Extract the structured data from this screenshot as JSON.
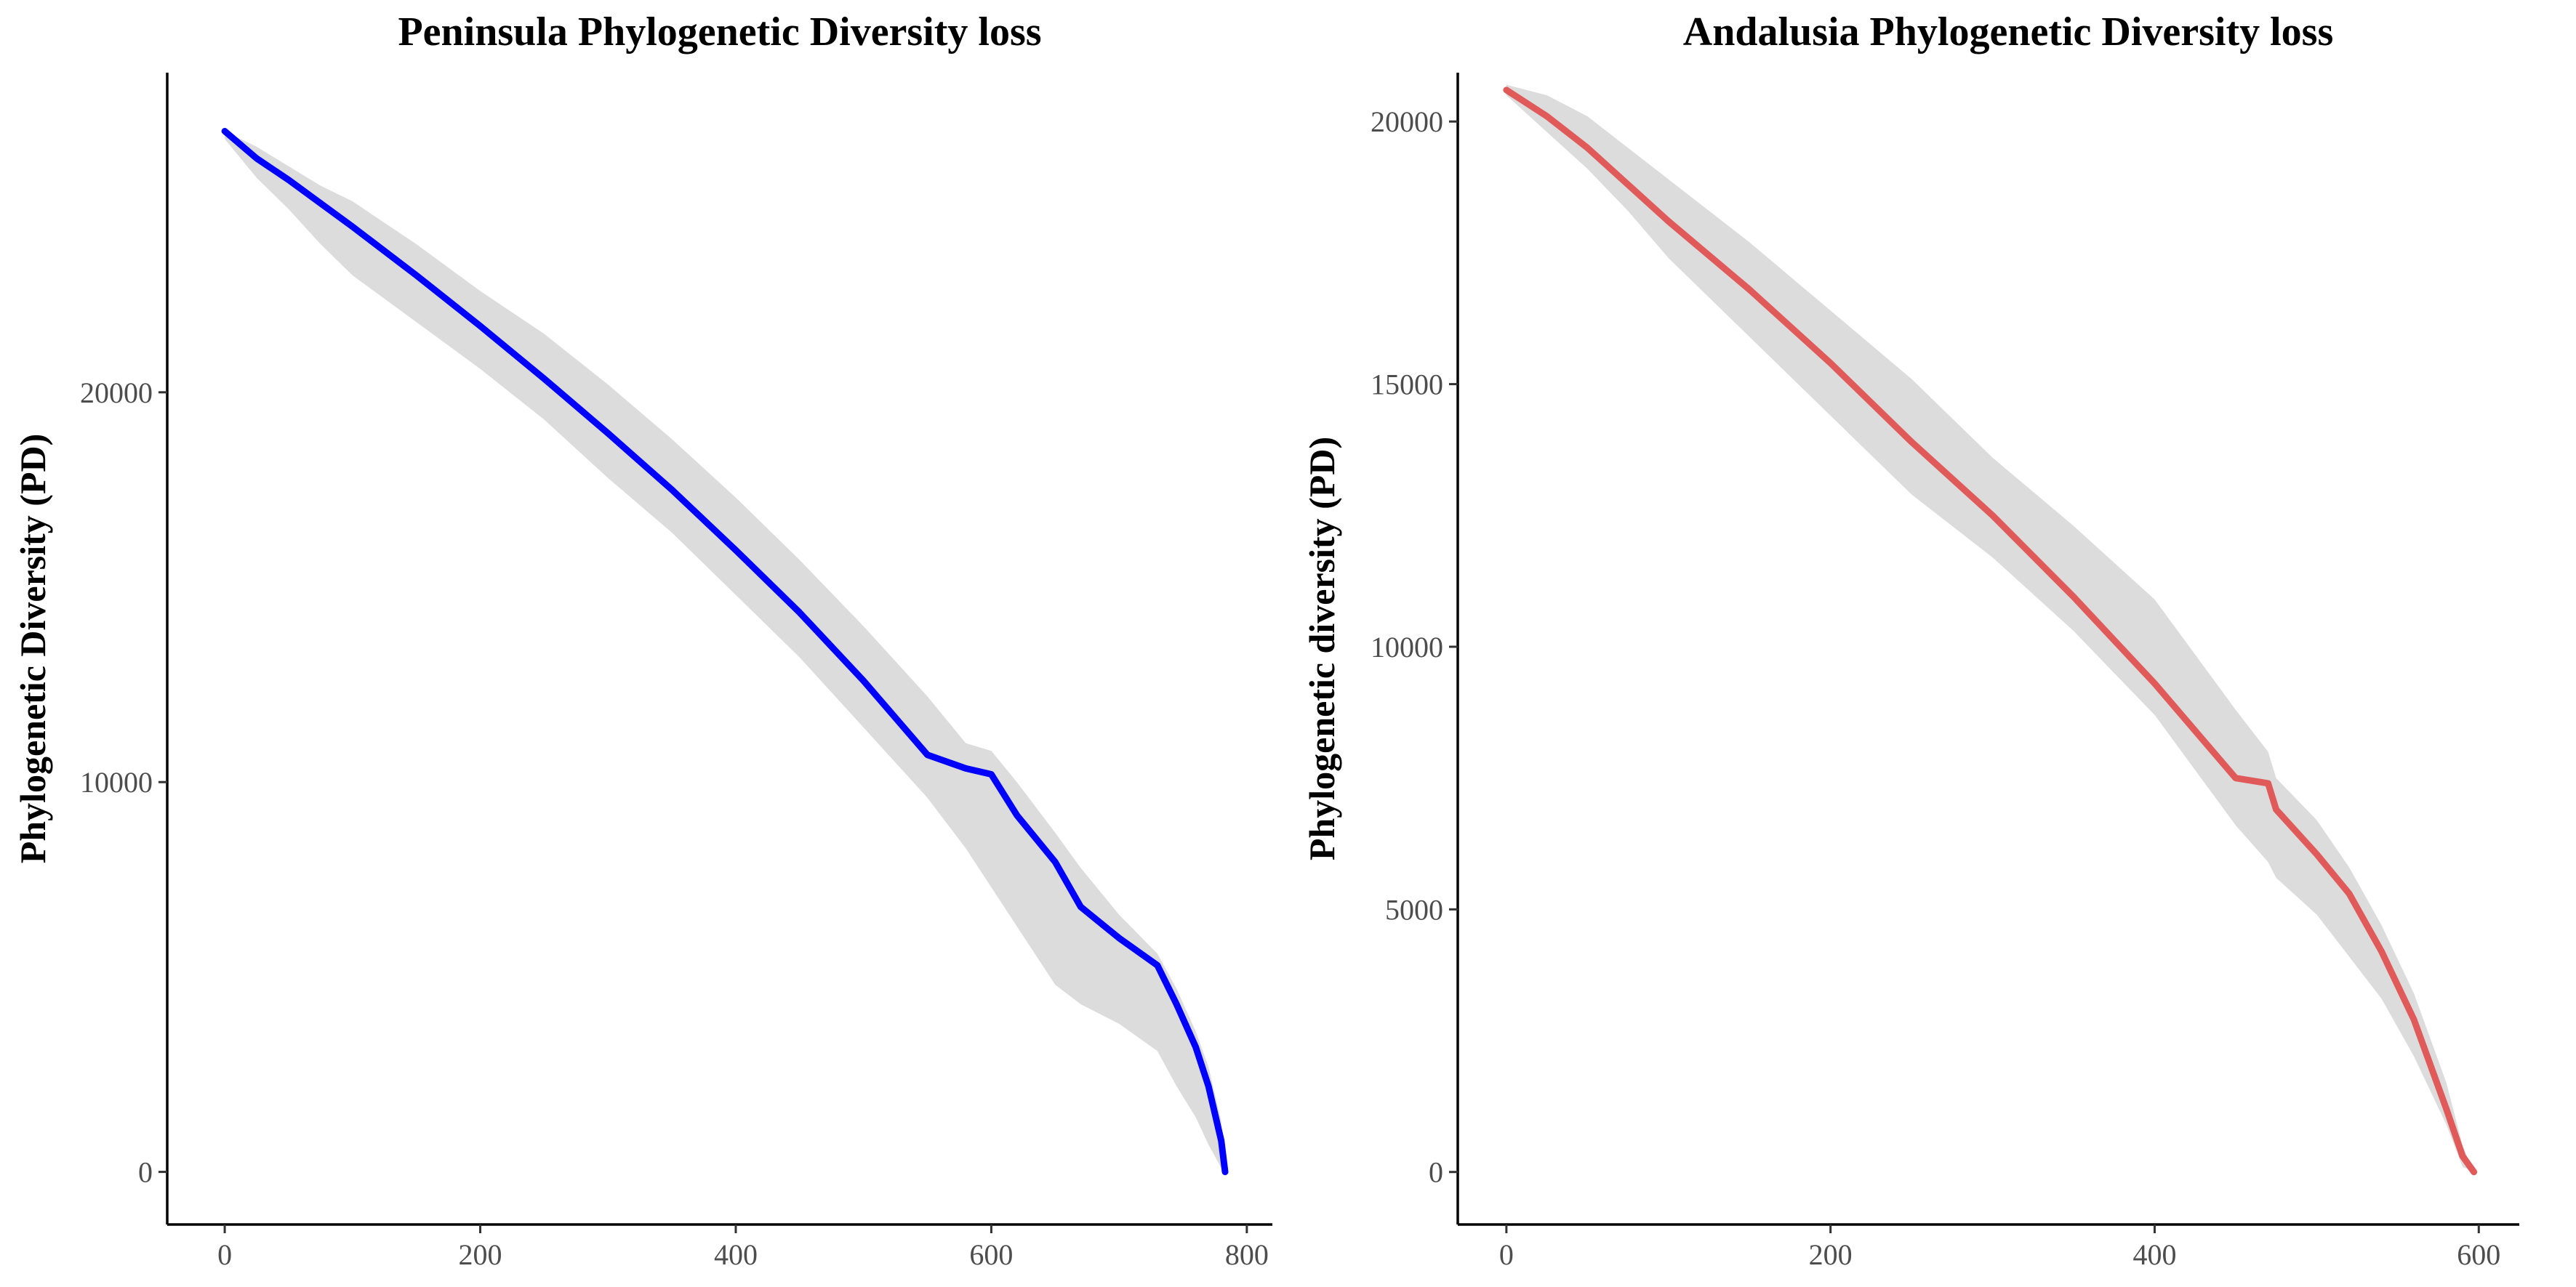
{
  "chart_data": [
    {
      "type": "line",
      "title": "Peninsula Phylogenetic Diversity loss",
      "xlabel": "",
      "ylabel": "Phylogenetic Diversity (PD)",
      "xlim": [
        -45,
        820
      ],
      "ylim": [
        -1350,
        28200
      ],
      "xticks": [
        0,
        200,
        400,
        600,
        800
      ],
      "yticks": [
        0,
        10000,
        20000
      ],
      "grid": false,
      "legend": "none",
      "line_color": "#0000ff",
      "band_color": "#dcdcdc",
      "series": [
        {
          "values_x": [
            0,
            25,
            50,
            75,
            100,
            150,
            200,
            250,
            300,
            350,
            400,
            450,
            500,
            550,
            580,
            600,
            620,
            650,
            670,
            700,
            730,
            745,
            760,
            770,
            780,
            783
          ],
          "values_y": [
            26700,
            26000,
            25450,
            24850,
            24250,
            23000,
            21700,
            20350,
            18950,
            17500,
            15950,
            14350,
            12600,
            10700,
            10350,
            10200,
            9150,
            7950,
            6800,
            6000,
            5300,
            4300,
            3200,
            2200,
            800,
            0
          ],
          "band_lower": [
            26500,
            25500,
            24700,
            23800,
            23000,
            21800,
            20600,
            19300,
            17800,
            16400,
            14800,
            13200,
            11400,
            9600,
            8300,
            7300,
            6300,
            4800,
            4300,
            3800,
            3100,
            2200,
            1400,
            700,
            100,
            0
          ],
          "band_upper": [
            26700,
            26300,
            25800,
            25300,
            24900,
            23800,
            22600,
            21500,
            20200,
            18800,
            17300,
            15700,
            14000,
            12200,
            11000,
            10800,
            10000,
            8700,
            7800,
            6600,
            5600,
            4700,
            3600,
            2700,
            1300,
            0
          ]
        }
      ]
    },
    {
      "type": "line",
      "title": "Andalusia Phylogenetic Diversity loss",
      "xlabel": "",
      "ylabel": "Phylogenetic diversity (PD)",
      "xlim": [
        -30,
        625
      ],
      "ylim": [
        -1000,
        20930
      ],
      "xticks": [
        0,
        200,
        400,
        600
      ],
      "yticks": [
        0,
        5000,
        10000,
        15000,
        20000
      ],
      "grid": false,
      "legend": "none",
      "line_color": "#e05a5a",
      "band_color": "#dcdcdc",
      "series": [
        {
          "values_x": [
            0,
            25,
            50,
            75,
            100,
            150,
            200,
            250,
            300,
            350,
            400,
            450,
            470,
            475,
            500,
            520,
            540,
            560,
            580,
            590,
            597
          ],
          "values_y": [
            20600,
            20100,
            19500,
            18800,
            18100,
            16800,
            15400,
            13900,
            12500,
            10950,
            9300,
            7500,
            7400,
            6900,
            6050,
            5300,
            4200,
            2900,
            1200,
            300,
            0
          ],
          "band_lower": [
            20500,
            19800,
            19100,
            18300,
            17400,
            15900,
            14400,
            12900,
            11700,
            10300,
            8700,
            6600,
            5900,
            5600,
            4900,
            4100,
            3300,
            2200,
            900,
            100,
            0
          ],
          "band_upper": [
            20700,
            20500,
            20100,
            19500,
            18900,
            17700,
            16400,
            15100,
            13600,
            12300,
            10900,
            8800,
            8000,
            7500,
            6700,
            5800,
            4700,
            3400,
            1700,
            500,
            0
          ]
        }
      ]
    }
  ]
}
